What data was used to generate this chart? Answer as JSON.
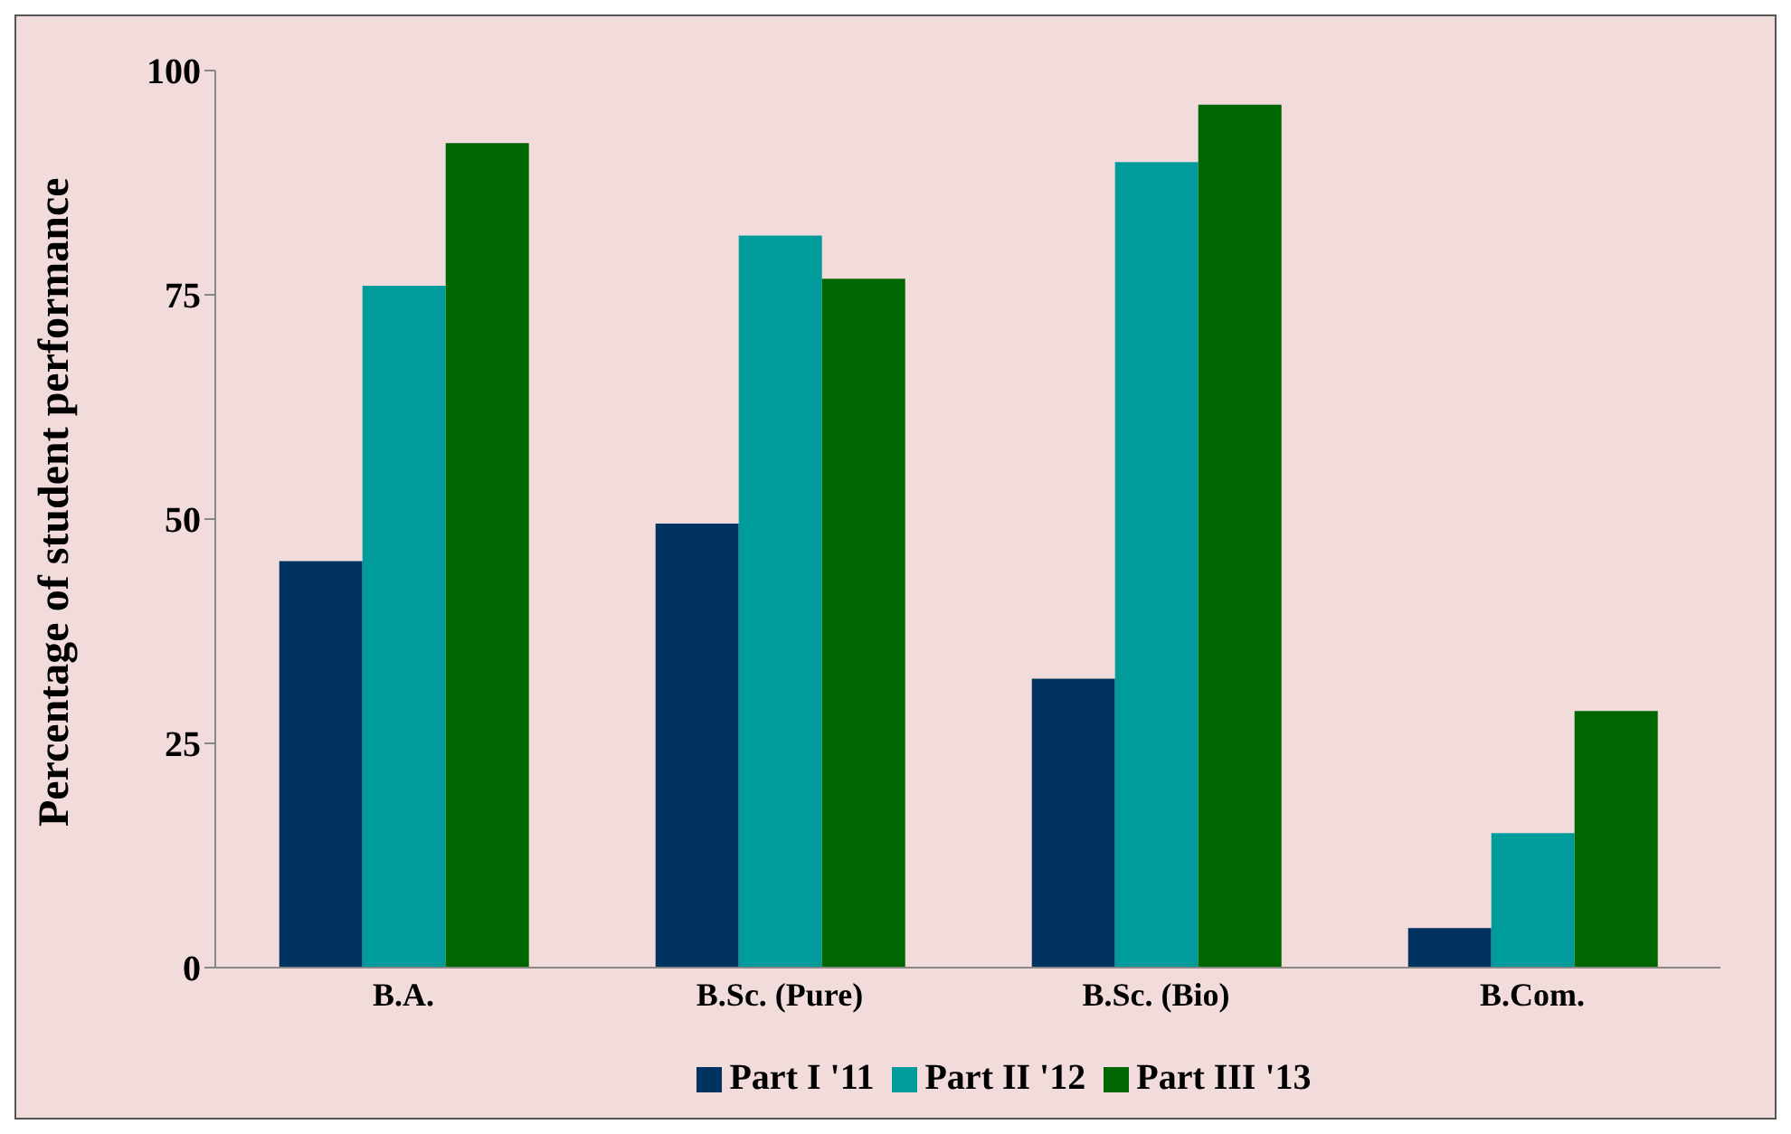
{
  "chart_data": {
    "type": "bar",
    "ylabel": "Percentage of student performance",
    "categories": [
      "B.A.",
      "B.Sc. (Pure)",
      "B.Sc. (Bio)",
      "B.Com."
    ],
    "series": [
      {
        "name": "Part I '11",
        "color": "#00335f",
        "values": [
          45.3,
          49.5,
          32.2,
          4.4
        ]
      },
      {
        "name": "Part II '12",
        "color": "#009b9b",
        "values": [
          76,
          81.6,
          89.8,
          15
        ]
      },
      {
        "name": "Part III '13",
        "color": "#006600",
        "values": [
          91.9,
          76.8,
          96.2,
          28.6
        ]
      }
    ],
    "ylim": [
      0,
      100
    ],
    "yticks": [
      0,
      25,
      50,
      75,
      100
    ],
    "grid": false,
    "legend": "bottom"
  }
}
